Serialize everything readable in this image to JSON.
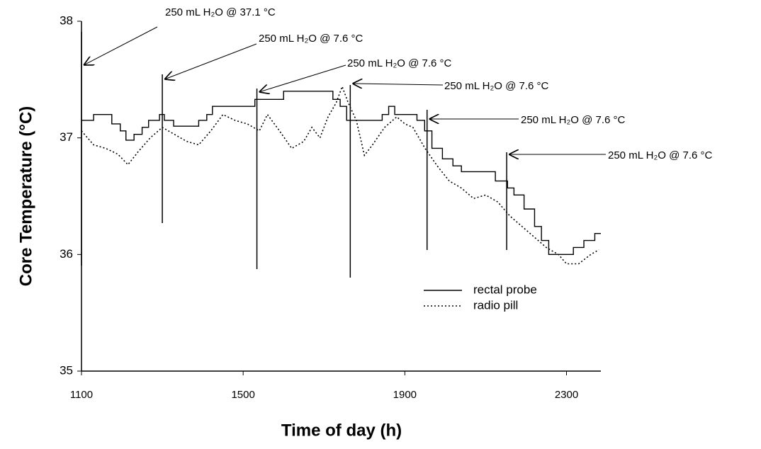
{
  "chart_data": {
    "type": "line",
    "xlabel": "Time of day (h)",
    "ylabel": "Core Temperature (°C)",
    "xlim": [
      1100,
      2385
    ],
    "xticks": [
      1100,
      1500,
      1900,
      2300
    ],
    "ylim": [
      35,
      38
    ],
    "yticks": [
      35,
      36,
      37,
      38
    ],
    "legend": "center right",
    "series": [
      {
        "name": "rectal probe",
        "color": "#000000",
        "line_style": "solid",
        "step": true,
        "x": [
          1100,
          1130,
          1175,
          1196,
          1210,
          1230,
          1250,
          1266,
          1293,
          1305,
          1328,
          1390,
          1410,
          1424,
          1529,
          1600,
          1722,
          1740,
          1756,
          1844,
          1860,
          1875,
          1930,
          1949,
          1967,
          1993,
          2019,
          2040,
          2124,
          2154,
          2170,
          2195,
          2221,
          2238,
          2256,
          2317,
          2343,
          2370,
          2385
        ],
        "values": [
          37.15,
          37.2,
          37.12,
          37.06,
          36.98,
          37.03,
          37.09,
          37.15,
          37.2,
          37.15,
          37.1,
          37.15,
          37.2,
          37.27,
          37.33,
          37.4,
          37.33,
          37.27,
          37.15,
          37.2,
          37.27,
          37.2,
          37.15,
          37.06,
          36.91,
          36.82,
          36.76,
          36.71,
          36.63,
          36.57,
          36.51,
          36.39,
          36.24,
          36.12,
          36.0,
          36.06,
          36.12,
          36.18,
          36.18
        ]
      },
      {
        "name": "radio pill",
        "color": "#000000",
        "line_style": "dotted",
        "step": false,
        "x": [
          1100,
          1130,
          1160,
          1190,
          1215,
          1240,
          1270,
          1300,
          1330,
          1360,
          1390,
          1420,
          1450,
          1480,
          1510,
          1540,
          1560,
          1590,
          1620,
          1650,
          1670,
          1690,
          1710,
          1730,
          1745,
          1760,
          1780,
          1800,
          1820,
          1850,
          1880,
          1900,
          1920,
          1950,
          1980,
          2010,
          2040,
          2070,
          2100,
          2130,
          2160,
          2190,
          2220,
          2250,
          2280,
          2300,
          2330,
          2360,
          2380
        ],
        "values": [
          37.06,
          36.94,
          36.91,
          36.86,
          36.77,
          36.88,
          37.0,
          37.09,
          37.03,
          36.97,
          36.94,
          37.06,
          37.2,
          37.15,
          37.12,
          37.06,
          37.2,
          37.06,
          36.91,
          36.97,
          37.09,
          37.0,
          37.18,
          37.3,
          37.44,
          37.3,
          37.15,
          36.85,
          36.94,
          37.09,
          37.18,
          37.12,
          37.09,
          36.91,
          36.76,
          36.63,
          36.57,
          36.48,
          36.51,
          36.45,
          36.33,
          36.24,
          36.15,
          36.06,
          36.0,
          35.92,
          35.92,
          36.0,
          36.04
        ]
      }
    ],
    "annotations": [
      {
        "x": 1100,
        "text": "250 mL H₂O @ 37.1 °C"
      },
      {
        "x": 1300,
        "text": "250 mL H₂O  @ 7.6 °C"
      },
      {
        "x": 1534,
        "text": "250 mL H₂O  @ 7.6 °C"
      },
      {
        "x": 1765,
        "text": "250 mL H₂O  @ 7.6 °C"
      },
      {
        "x": 1955,
        "text": "250 mL H₂O  @ 7.6 °C"
      },
      {
        "x": 2152,
        "text": "250 mL H₂O  @ 7.6 °C"
      }
    ]
  }
}
